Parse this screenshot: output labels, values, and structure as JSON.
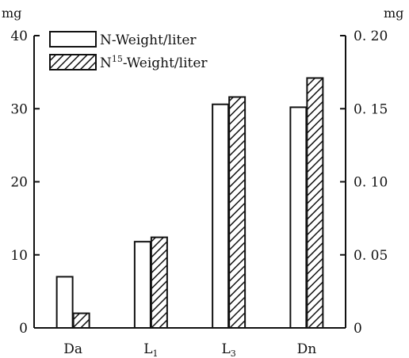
{
  "chart_data": {
    "type": "bar",
    "categories": [
      {
        "base": "Da",
        "sub": ""
      },
      {
        "base": "L",
        "sub": "1"
      },
      {
        "base": "L",
        "sub": "3"
      },
      {
        "base": "Dn",
        "sub": ""
      }
    ],
    "series": [
      {
        "name": "N-Weight/liter",
        "axis": "left",
        "pattern": "none",
        "values": [
          7,
          11.8,
          30.6,
          30.2
        ]
      },
      {
        "name_parts": {
          "base": "N",
          "sup": "15",
          "rest": "-Weight/liter"
        },
        "axis": "right",
        "pattern": "diagonal-hatch",
        "values": [
          0.01,
          0.062,
          0.158,
          0.171
        ]
      }
    ],
    "left_axis": {
      "unit": "mg",
      "min": 0,
      "max": 40,
      "ticks": [
        0,
        10,
        20,
        30,
        40
      ],
      "tick_labels": [
        "0",
        "10",
        "20",
        "30",
        "40"
      ]
    },
    "right_axis": {
      "unit": "mg",
      "min": 0,
      "max": 0.2,
      "ticks": [
        0,
        0.05,
        0.1,
        0.15,
        0.2
      ],
      "tick_labels": [
        "0",
        "0. 05",
        "0. 10",
        "0. 15",
        "0. 20"
      ]
    },
    "grid": false,
    "legend_position": "top-left"
  }
}
